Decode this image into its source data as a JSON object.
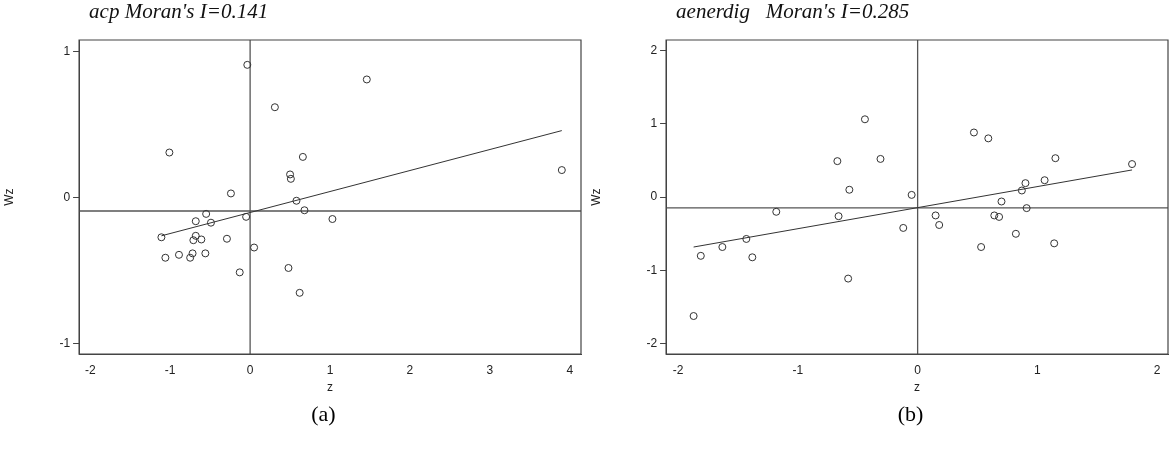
{
  "chart_data": [
    {
      "type": "scatter",
      "title": "acp Moran's I=0.141",
      "xlabel": "z",
      "ylabel": "Wz",
      "xlim": [
        -2.14,
        4.14
      ],
      "xticks": [
        -2,
        -1,
        0,
        1,
        2,
        3,
        4
      ],
      "ylim": [
        -1.07,
        1.08
      ],
      "yticks": [
        -1,
        0,
        1
      ],
      "grid": false,
      "legend": false,
      "marker": "circle",
      "annotations": [
        "(a)"
      ],
      "ref_lines": [
        {
          "axis": "y",
          "value": -0.09,
          "color": "#555555"
        },
        {
          "axis": "x",
          "value": 0,
          "color": "#555555"
        }
      ],
      "series": [
        {
          "color": "#333333",
          "x": [
            -0.035,
            0.31,
            -1.01,
            0.66,
            0.5,
            0.51,
            -0.24,
            0.58,
            0.68,
            1.03,
            -0.55,
            -0.68,
            -0.49,
            -0.05,
            -1.11,
            -0.68,
            -0.71,
            -0.61,
            -0.29,
            0.05,
            -1.06,
            -0.89,
            -0.72,
            -0.75,
            -0.56,
            -0.13,
            0.48,
            0.62,
            1.46,
            3.9
          ],
          "values": [
            0.91,
            0.62,
            0.31,
            0.28,
            0.16,
            0.13,
            0.03,
            -0.02,
            -0.085,
            -0.145,
            -0.11,
            -0.16,
            -0.17,
            -0.13,
            -0.27,
            -0.26,
            -0.29,
            -0.285,
            -0.28,
            -0.34,
            -0.41,
            -0.39,
            -0.38,
            -0.41,
            -0.38,
            -0.51,
            -0.48,
            -0.65,
            0.81,
            0.19
          ]
        },
        {
          "type": "line",
          "color": "#333333",
          "marker": "none",
          "x": [
            -1.11,
            3.9
          ],
          "values": [
            -0.26,
            0.46
          ]
        }
      ]
    },
    {
      "type": "scatter",
      "title": "aenerdig   Moran's I=0.285",
      "xlabel": "z",
      "ylabel": "Wz",
      "xlim": [
        -2.1,
        2.09
      ],
      "xticks": [
        -2,
        -1,
        0,
        1,
        2
      ],
      "ylim": [
        -2.14,
        2.14
      ],
      "yticks": [
        -2,
        -1,
        0,
        1,
        2
      ],
      "grid": false,
      "legend": false,
      "marker": "circle",
      "annotations": [
        "(b)"
      ],
      "ref_lines": [
        {
          "axis": "y",
          "value": -0.148,
          "color": "#555555"
        },
        {
          "axis": "x",
          "value": 0,
          "color": "#555555"
        }
      ],
      "series": [
        {
          "color": "#333333",
          "x": [
            -1.87,
            -1.81,
            -1.63,
            -1.43,
            -1.38,
            -1.18,
            -0.67,
            -0.57,
            -0.66,
            -0.58,
            -0.44,
            -0.31,
            -0.12,
            -0.05,
            0.47,
            0.59,
            1.15,
            1.79,
            1.06,
            0.9,
            0.87,
            0.7,
            0.91,
            0.15,
            0.18,
            0.64,
            0.68,
            0.82,
            0.53,
            1.14
          ],
          "values": [
            -1.62,
            -0.8,
            -0.68,
            -0.57,
            -0.82,
            -0.2,
            0.49,
            0.1,
            -0.26,
            -1.11,
            1.06,
            0.52,
            -0.42,
            0.03,
            0.88,
            0.8,
            0.53,
            0.45,
            0.23,
            0.19,
            0.09,
            -0.06,
            -0.15,
            -0.25,
            -0.38,
            -0.25,
            -0.27,
            -0.5,
            -0.68,
            -0.63
          ]
        },
        {
          "type": "line",
          "color": "#333333",
          "marker": "none",
          "x": [
            -1.87,
            1.79
          ],
          "values": [
            -0.68,
            0.37
          ]
        }
      ]
    }
  ]
}
